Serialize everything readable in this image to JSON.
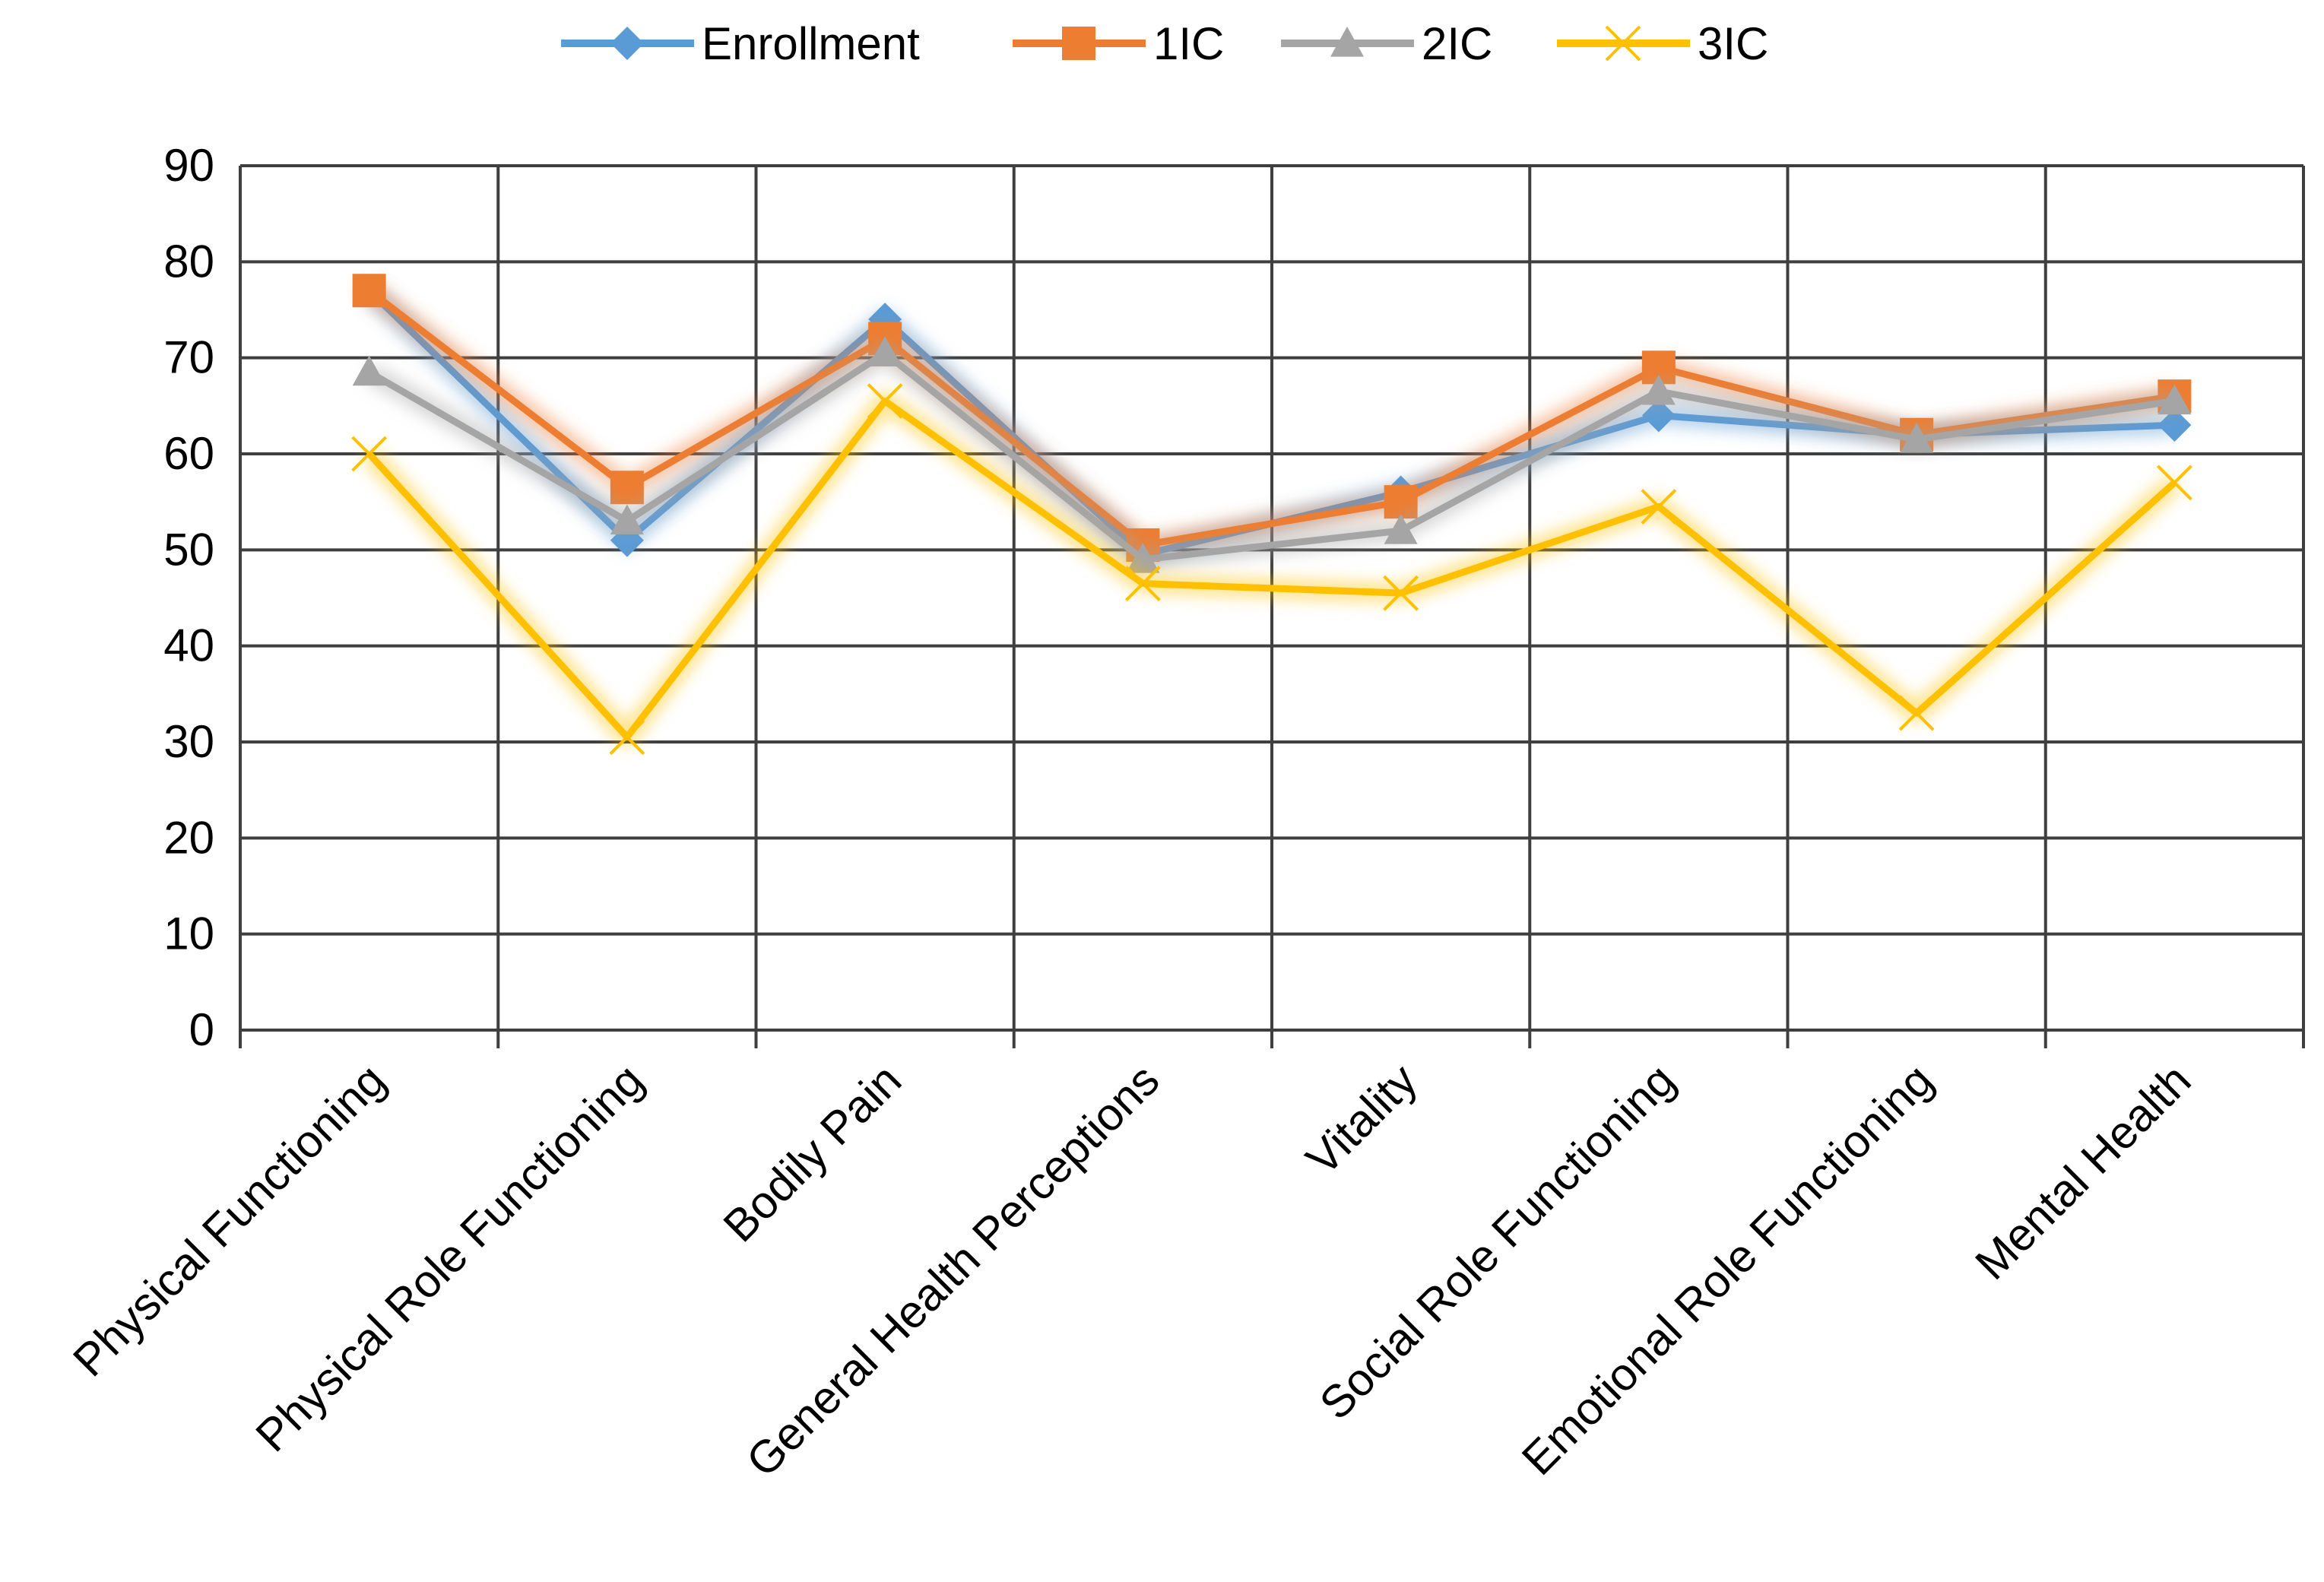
{
  "chart_data": {
    "type": "line",
    "title": "",
    "xlabel": "",
    "ylabel": "",
    "ylim": [
      0,
      90
    ],
    "yticks": [
      "0",
      "10",
      "20",
      "30",
      "40",
      "50",
      "60",
      "70",
      "80",
      "90"
    ],
    "grid": true,
    "legend_position": "top-center",
    "categories": [
      "Physical Functioning",
      "Physical Role Functioning",
      "Bodily Pain",
      "General Health Perceptions",
      "Vitality",
      "Social Role Functioning",
      "Emotional Role Functioning",
      "Mental Health"
    ],
    "series": [
      {
        "name": "Enrollment",
        "color": "#5b9bd5",
        "marker": "diamond",
        "values": [
          77,
          51,
          74,
          49.5,
          56,
          64,
          62,
          63
        ]
      },
      {
        "name": "1IC",
        "color": "#ed7d31",
        "marker": "square",
        "values": [
          77,
          56.5,
          72,
          50.5,
          55,
          69,
          62,
          66
        ]
      },
      {
        "name": "2IC",
        "color": "#a5a5a5",
        "marker": "triangle",
        "values": [
          68.5,
          53,
          70.5,
          49,
          52,
          66.5,
          61.5,
          65.5
        ]
      },
      {
        "name": "3IC",
        "color": "#ffc000",
        "marker": "x",
        "values": [
          60,
          30.5,
          65.5,
          46.5,
          45.5,
          54.5,
          33,
          57
        ]
      }
    ]
  }
}
